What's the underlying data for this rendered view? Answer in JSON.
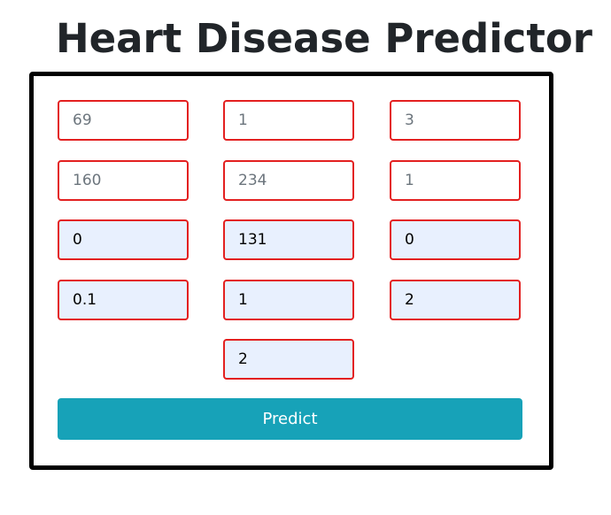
{
  "page": {
    "title": "Heart Disease Predictor"
  },
  "form": {
    "fields": [
      {
        "placeholder": "69",
        "value": ""
      },
      {
        "placeholder": "1",
        "value": ""
      },
      {
        "placeholder": "3",
        "value": ""
      },
      {
        "placeholder": "160",
        "value": ""
      },
      {
        "placeholder": "234",
        "value": ""
      },
      {
        "placeholder": "1",
        "value": ""
      },
      {
        "placeholder": "",
        "value": "0"
      },
      {
        "placeholder": "",
        "value": "131"
      },
      {
        "placeholder": "",
        "value": "0"
      },
      {
        "placeholder": "",
        "value": "0.1"
      },
      {
        "placeholder": "",
        "value": "1"
      },
      {
        "placeholder": "",
        "value": "2"
      },
      {
        "placeholder": "",
        "value": "2"
      }
    ],
    "submit_label": "Predict"
  },
  "colors": {
    "field_border": "#e32020",
    "autofill_background": "#e8f0fe",
    "button_background": "#17a2b8",
    "button_text": "#ffffff",
    "card_border": "#000000"
  }
}
